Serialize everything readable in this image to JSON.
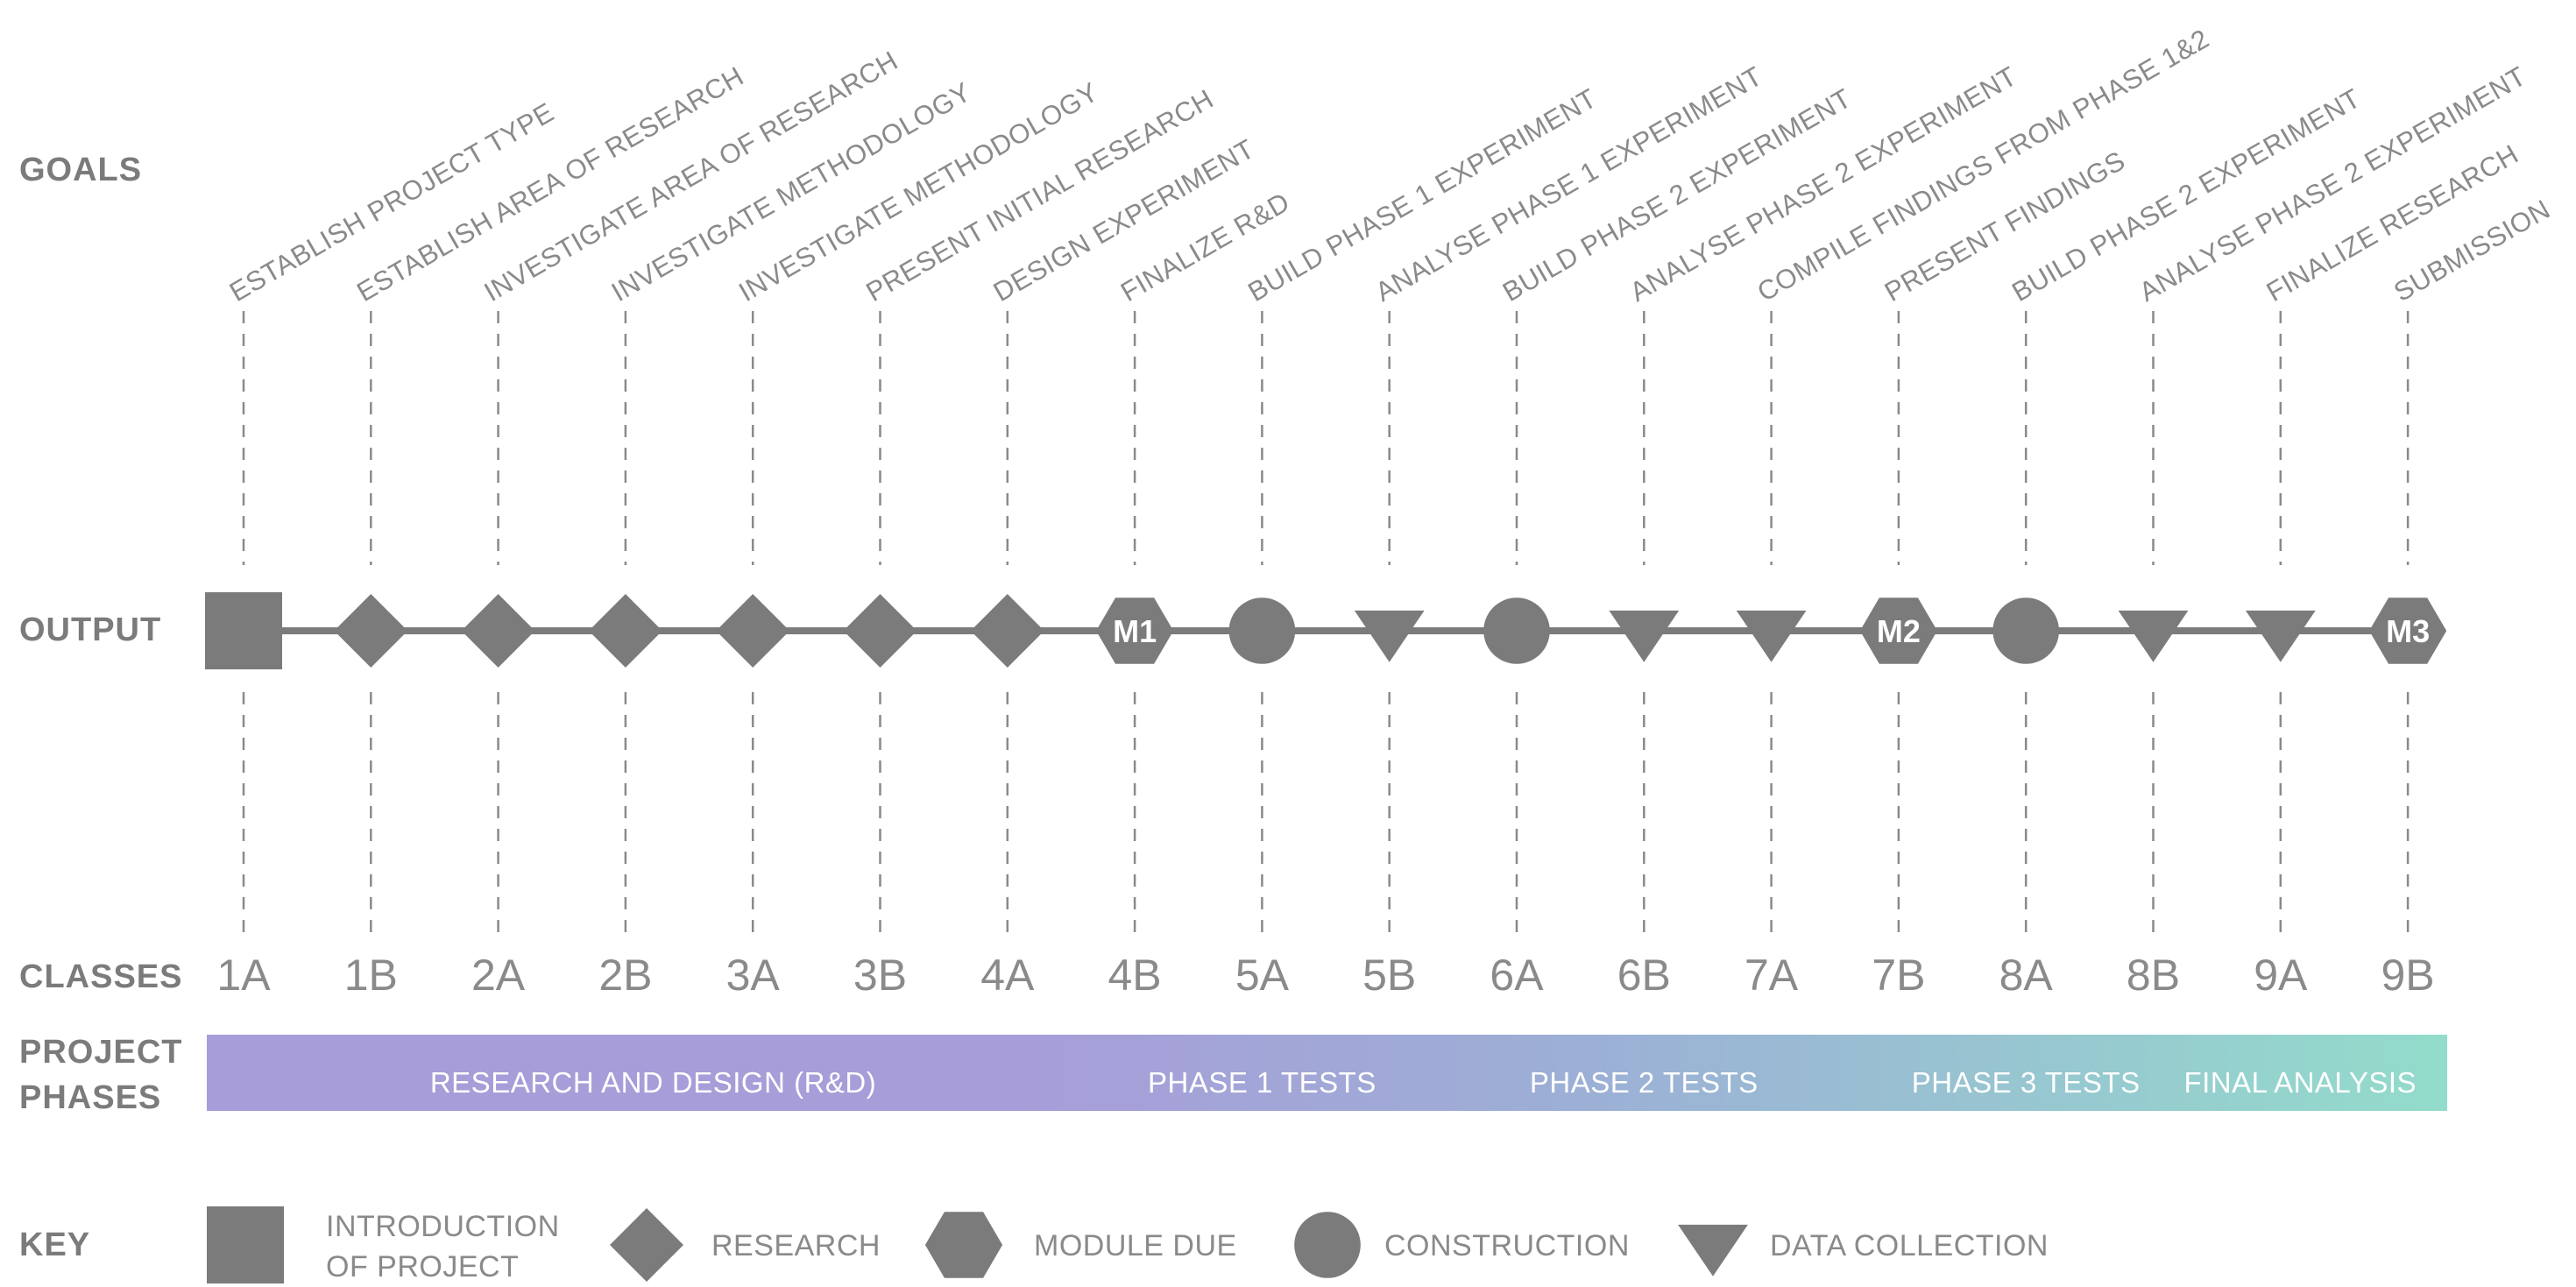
{
  "row_labels": {
    "goals": "GOALS",
    "output": "OUTPUT",
    "classes": "CLASSES",
    "project_phases_line1": "PROJECT",
    "project_phases_line2": "PHASES",
    "key": "KEY"
  },
  "colors": {
    "shape": "#7b7b7b",
    "text": "#8a8a8a",
    "phase_start": "#a79dd8",
    "phase_mid": "#9cb0d6",
    "phase_end": "#93dccb"
  },
  "columns": [
    {
      "class": "1A",
      "goal": "ESTABLISH PROJECT TYPE",
      "output": "square"
    },
    {
      "class": "1B",
      "goal": "ESTABLISH AREA OF RESEARCH",
      "output": "diamond"
    },
    {
      "class": "2A",
      "goal": "INVESTIGATE AREA OF RESEARCH",
      "output": "diamond"
    },
    {
      "class": "2B",
      "goal": "INVESTIGATE METHODOLOGY",
      "output": "diamond"
    },
    {
      "class": "3A",
      "goal": "INVESTIGATE METHODOLOGY",
      "output": "diamond"
    },
    {
      "class": "3B",
      "goal": "PRESENT INITIAL RESEARCH",
      "output": "diamond"
    },
    {
      "class": "4A",
      "goal": "DESIGN EXPERIMENT",
      "output": "diamond"
    },
    {
      "class": "4B",
      "goal": "FINALIZE R&D",
      "output": "hexagon",
      "marker": "M1"
    },
    {
      "class": "5A",
      "goal": "BUILD PHASE 1 EXPERIMENT",
      "output": "circle"
    },
    {
      "class": "5B",
      "goal": "ANALYSE PHASE 1 EXPERIMENT",
      "output": "triangle"
    },
    {
      "class": "6A",
      "goal": "BUILD PHASE 2 EXPERIMENT",
      "output": "circle"
    },
    {
      "class": "6B",
      "goal": "ANALYSE PHASE 2 EXPERIMENT",
      "output": "triangle"
    },
    {
      "class": "7A",
      "goal": "COMPILE FINDINGS FROM PHASE 1&2",
      "output": "triangle"
    },
    {
      "class": "7B",
      "goal": "PRESENT FINDINGS",
      "output": "hexagon",
      "marker": "M2"
    },
    {
      "class": "8A",
      "goal": "BUILD PHASE 2 EXPERIMENT",
      "output": "circle"
    },
    {
      "class": "8B",
      "goal": "ANALYSE PHASE 2 EXPERIMENT",
      "output": "triangle"
    },
    {
      "class": "9A",
      "goal": "FINALIZE RESEARCH",
      "output": "triangle"
    },
    {
      "class": "9B",
      "goal": "SUBMISSION",
      "output": "hexagon",
      "marker": "M3"
    }
  ],
  "phases": [
    {
      "label": "RESEARCH AND DESIGN (R&D)",
      "from_col": 0,
      "to_col": 7
    },
    {
      "label": "PHASE 1 TESTS",
      "from_col": 7,
      "to_col": 9
    },
    {
      "label": "PHASE 2 TESTS",
      "from_col": 9,
      "to_col": 13
    },
    {
      "label": "PHASE 3 TESTS",
      "from_col": 13,
      "to_col": 15
    },
    {
      "label": "FINAL ANALYSIS",
      "from_col": 15,
      "to_col": 17
    }
  ],
  "key": [
    {
      "shape": "square",
      "line1": "INTRODUCTION",
      "line2": "OF PROJECT"
    },
    {
      "shape": "diamond",
      "line1": "RESEARCH"
    },
    {
      "shape": "hexagon",
      "line1": "MODULE DUE"
    },
    {
      "shape": "circle",
      "line1": "CONSTRUCTION"
    },
    {
      "shape": "triangle",
      "line1": "DATA COLLECTION"
    }
  ]
}
